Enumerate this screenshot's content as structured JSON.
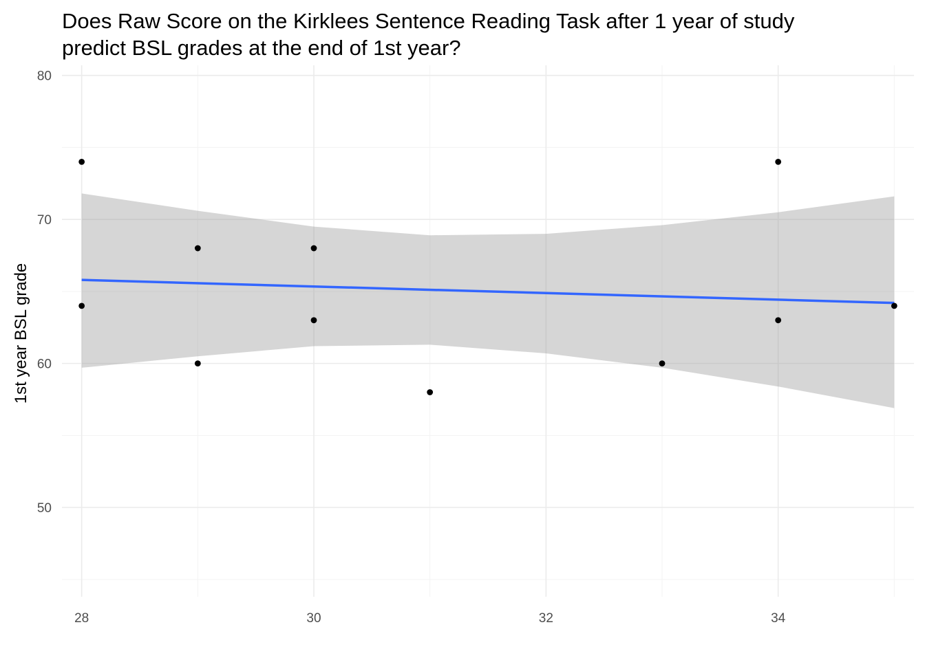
{
  "chart_data": {
    "type": "scatter",
    "title_lines": [
      "Does Raw Score on the Kirklees Sentence Reading Task after 1 year of study",
      "predict BSL grades at the end of 1st year?"
    ],
    "xlabel": "",
    "ylabel": "1st year BSL grade",
    "xlim": [
      27.83,
      35.17
    ],
    "ylim": [
      43.8,
      80.7
    ],
    "x_ticks": [
      28,
      30,
      32,
      34
    ],
    "y_ticks": [
      50,
      60,
      70,
      80
    ],
    "x_tick_labels": [
      "28",
      "30",
      "32",
      "34"
    ],
    "y_tick_labels": [
      "50",
      "60",
      "70",
      "80"
    ],
    "grid": true,
    "points": [
      {
        "x": 28,
        "y": 74
      },
      {
        "x": 28,
        "y": 64
      },
      {
        "x": 29,
        "y": 68
      },
      {
        "x": 29,
        "y": 60
      },
      {
        "x": 30,
        "y": 68
      },
      {
        "x": 30,
        "y": 63
      },
      {
        "x": 31,
        "y": 58
      },
      {
        "x": 33,
        "y": 60
      },
      {
        "x": 34,
        "y": 74
      },
      {
        "x": 34,
        "y": 63
      },
      {
        "x": 35,
        "y": 64
      }
    ],
    "trend_line": {
      "x": [
        28,
        35
      ],
      "y": [
        65.8,
        64.2
      ]
    },
    "confidence_band": {
      "x": [
        28,
        29,
        30,
        31,
        32,
        33,
        34,
        35
      ],
      "upper": [
        71.8,
        70.6,
        69.5,
        68.9,
        69.0,
        69.6,
        70.5,
        71.6
      ],
      "lower": [
        59.7,
        60.5,
        61.2,
        61.3,
        60.7,
        59.7,
        58.4,
        56.9
      ]
    },
    "colors": {
      "trend_line": "#3366ff",
      "band": "#999999",
      "points": "#000000"
    }
  }
}
